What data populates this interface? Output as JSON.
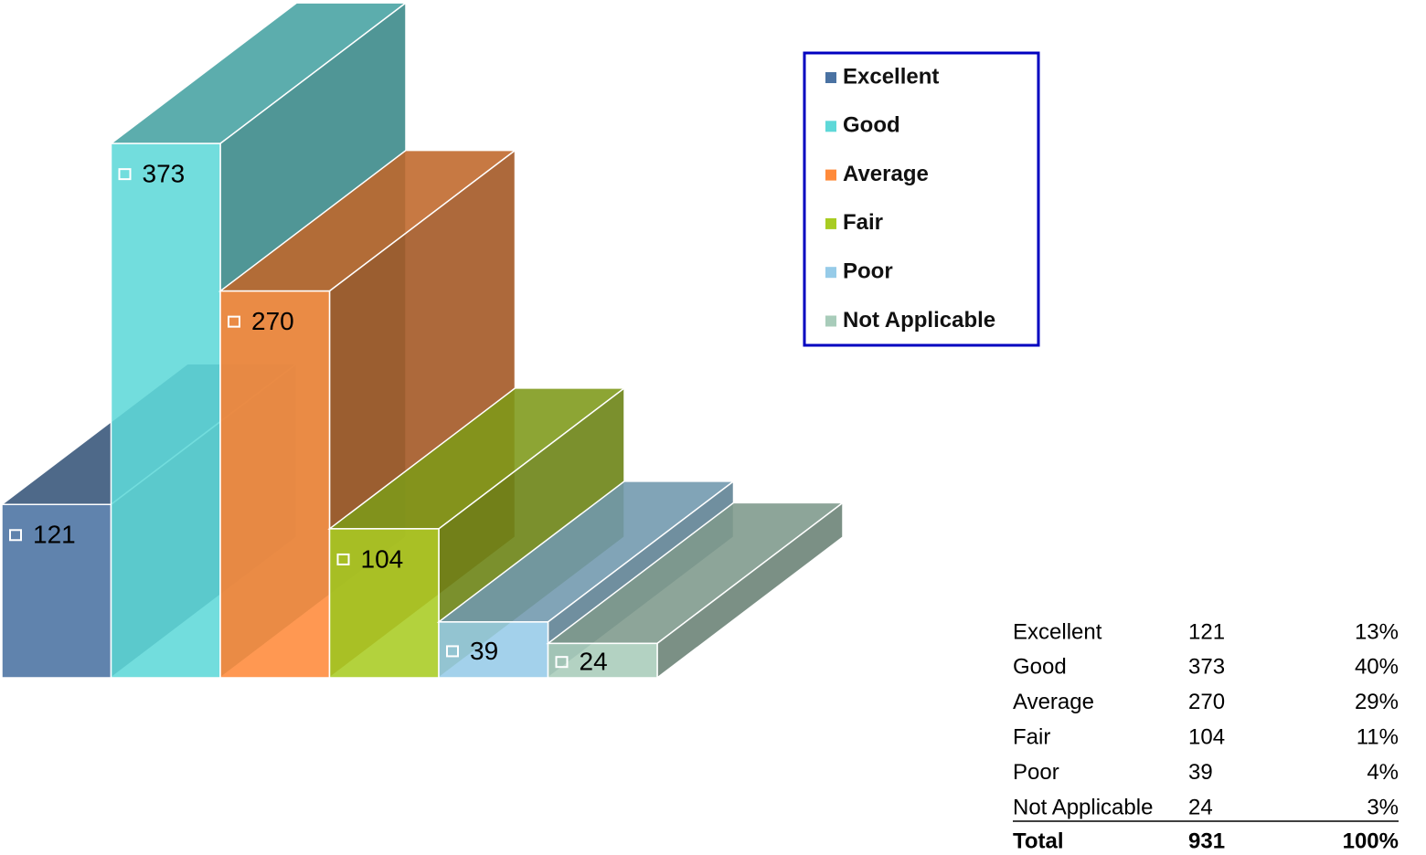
{
  "chart_data": {
    "type": "bar3d",
    "categories": [
      "Excellent",
      "Good",
      "Average",
      "Fair",
      "Poor",
      "Not Applicable"
    ],
    "values": [
      121,
      373,
      270,
      104,
      39,
      24
    ],
    "colors": [
      "#4a72a2",
      "#5ed8d8",
      "#ff8a3a",
      "#a8cc22",
      "#96cbe8",
      "#a8ccba"
    ],
    "legend": "top-right"
  },
  "table": {
    "percents": [
      "13%",
      "40%",
      "29%",
      "11%",
      "4%",
      "3%"
    ],
    "total": {
      "label": "Total",
      "value": 931,
      "percent": "100%"
    }
  }
}
